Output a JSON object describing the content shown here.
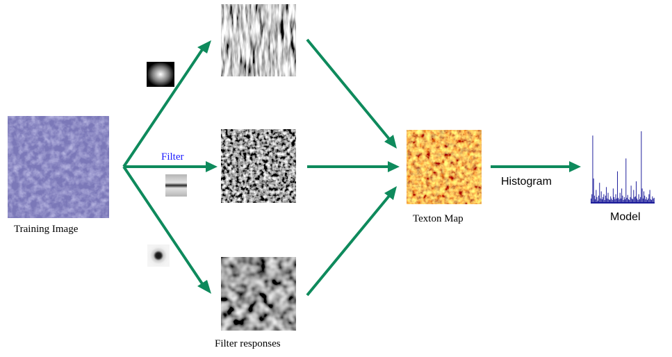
{
  "diagram": {
    "labels": {
      "training_image": "Training Image",
      "filter": "Filter",
      "filter_responses": "Filter responses",
      "texton_map": "Texton Map",
      "histogram": "Histogram",
      "model": "Model"
    },
    "colors": {
      "arrow": "#0e8a5c",
      "filter_label": "#1a1aff",
      "histogram_bars": "#1c1c9a",
      "training_texture": "#7b78b8",
      "texton_map": "#e0701a"
    },
    "histogram_bars": [
      0.06,
      0.12,
      0.94,
      0.34,
      0.1,
      0.05,
      0.18,
      0.08,
      0.03,
      0.1,
      0.28,
      0.06,
      0.16,
      0.05,
      0.08,
      0.12,
      0.04,
      0.1,
      0.22,
      0.06,
      0.14,
      0.05,
      0.04,
      0.09,
      0.06,
      0.04,
      0.2,
      0.08,
      0.05,
      0.12,
      0.06,
      0.44,
      0.07,
      0.05,
      0.14,
      0.06,
      0.2,
      0.1,
      0.04,
      0.08,
      0.05,
      0.62,
      0.07,
      0.11,
      0.05,
      0.04,
      0.08,
      0.24,
      0.06,
      0.05,
      0.18,
      0.08,
      0.09,
      0.3,
      0.06,
      0.04,
      0.12,
      0.05,
      0.08,
      1.0,
      0.2,
      0.06,
      0.16,
      0.1,
      0.05,
      0.08,
      0.04,
      0.06,
      0.12,
      0.18,
      0.05,
      0.04,
      0.09,
      0.06,
      0.07
    ]
  }
}
